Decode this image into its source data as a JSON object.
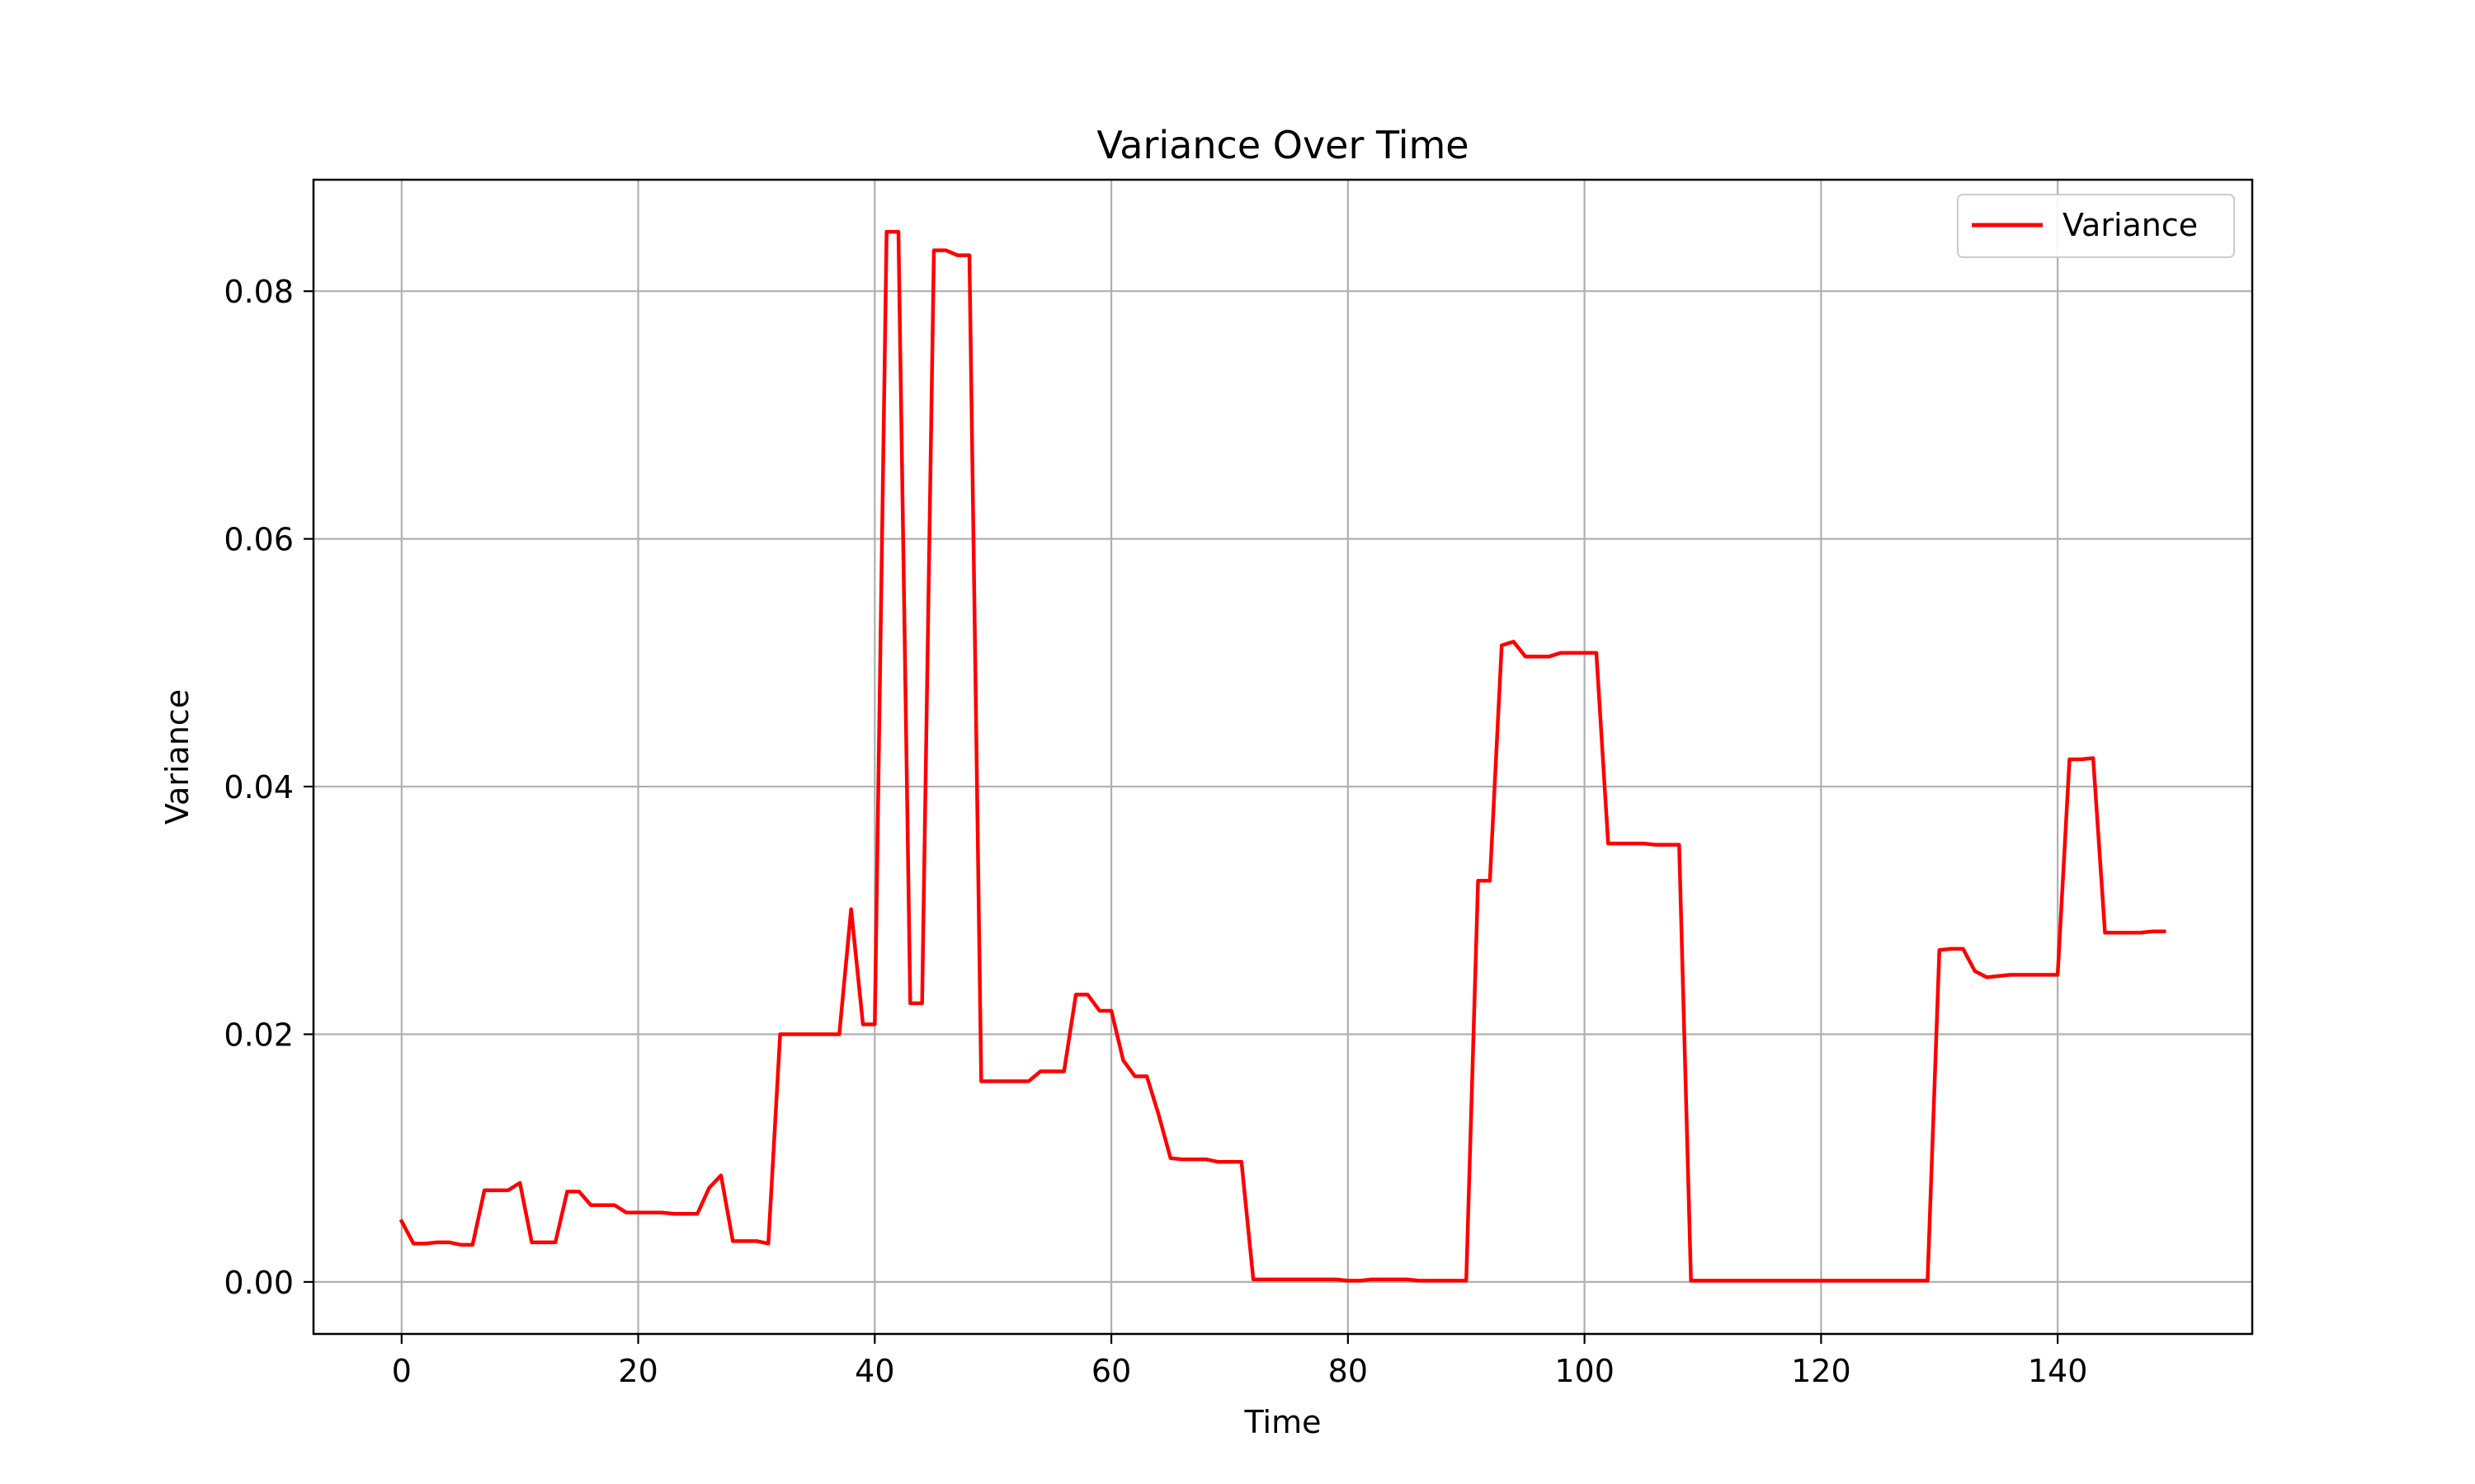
{
  "chart_data": {
    "type": "line",
    "title": "Variance Over Time",
    "xlabel": "Time",
    "ylabel": "Variance",
    "xlim": [
      -7.45,
      156.45
    ],
    "ylim": [
      -0.0042,
      0.089
    ],
    "xticks": [
      0,
      20,
      40,
      60,
      80,
      100,
      120,
      140
    ],
    "xtick_labels": [
      "0",
      "20",
      "40",
      "60",
      "80",
      "100",
      "120",
      "140"
    ],
    "yticks": [
      0.0,
      0.02,
      0.04,
      0.06,
      0.08
    ],
    "ytick_labels": [
      "0.00",
      "0.02",
      "0.04",
      "0.06",
      "0.08"
    ],
    "grid": true,
    "legend_position": "top-right",
    "series": [
      {
        "name": "Variance",
        "color": "#ff0000",
        "x": [
          0,
          1,
          2,
          3,
          4,
          5,
          6,
          7,
          8,
          9,
          10,
          11,
          12,
          13,
          14,
          15,
          16,
          17,
          18,
          19,
          20,
          21,
          22,
          23,
          24,
          25,
          26,
          27,
          28,
          29,
          30,
          31,
          32,
          33,
          34,
          35,
          36,
          37,
          38,
          39,
          40,
          41,
          42,
          43,
          44,
          45,
          46,
          47,
          48,
          49,
          50,
          51,
          52,
          53,
          54,
          55,
          56,
          57,
          58,
          59,
          60,
          61,
          62,
          63,
          64,
          65,
          66,
          67,
          68,
          69,
          70,
          71,
          72,
          73,
          74,
          75,
          76,
          77,
          78,
          79,
          80,
          81,
          82,
          83,
          84,
          85,
          86,
          87,
          88,
          89,
          90,
          91,
          92,
          93,
          94,
          95,
          96,
          97,
          98,
          99,
          100,
          101,
          102,
          103,
          104,
          105,
          106,
          107,
          108,
          109,
          110,
          111,
          112,
          113,
          114,
          115,
          116,
          117,
          118,
          119,
          120,
          121,
          122,
          123,
          124,
          125,
          126,
          127,
          128,
          129,
          130,
          131,
          132,
          133,
          134,
          135,
          136,
          137,
          138,
          139,
          140,
          141,
          142,
          143,
          144,
          145,
          146,
          147,
          148,
          149
        ],
        "y": [
          0.0049,
          0.0031,
          0.0031,
          0.0032,
          0.0032,
          0.003,
          0.003,
          0.0074,
          0.0074,
          0.0074,
          0.008,
          0.0032,
          0.0032,
          0.0032,
          0.0073,
          0.0073,
          0.0062,
          0.0062,
          0.0062,
          0.0056,
          0.0056,
          0.0056,
          0.0056,
          0.0055,
          0.0055,
          0.0055,
          0.0076,
          0.0086,
          0.0033,
          0.0033,
          0.0033,
          0.0031,
          0.02,
          0.02,
          0.02,
          0.02,
          0.02,
          0.02,
          0.0301,
          0.0208,
          0.0208,
          0.0848,
          0.0848,
          0.0225,
          0.0225,
          0.0833,
          0.0833,
          0.0829,
          0.0829,
          0.0162,
          0.0162,
          0.0162,
          0.0162,
          0.0162,
          0.017,
          0.017,
          0.017,
          0.0232,
          0.0232,
          0.0219,
          0.0219,
          0.0179,
          0.0166,
          0.0166,
          0.0135,
          0.01,
          0.0099,
          0.0099,
          0.0099,
          0.0097,
          0.0097,
          0.0097,
          0.0002,
          0.0002,
          0.0002,
          0.0002,
          0.0002,
          0.0002,
          0.0002,
          0.0002,
          0.0001,
          0.0001,
          0.0002,
          0.0002,
          0.0002,
          0.0002,
          0.0001,
          0.0001,
          0.0001,
          0.0001,
          0.0001,
          0.0324,
          0.0324,
          0.0514,
          0.0517,
          0.0505,
          0.0505,
          0.0505,
          0.0508,
          0.0508,
          0.0508,
          0.0508,
          0.0354,
          0.0354,
          0.0354,
          0.0354,
          0.0353,
          0.0353,
          0.0353,
          0.0001,
          0.0001,
          0.0001,
          0.0001,
          0.0001,
          0.0001,
          0.0001,
          0.0001,
          0.0001,
          0.0001,
          0.0001,
          0.0001,
          0.0001,
          0.0001,
          0.0001,
          0.0001,
          0.0001,
          0.0001,
          0.0001,
          0.0001,
          0.0001,
          0.0268,
          0.0269,
          0.0269,
          0.0251,
          0.0246,
          0.0247,
          0.0248,
          0.0248,
          0.0248,
          0.0248,
          0.0248,
          0.0422,
          0.0422,
          0.0423,
          0.0282,
          0.0282,
          0.0282,
          0.0282,
          0.0283,
          0.0283
        ]
      }
    ]
  }
}
